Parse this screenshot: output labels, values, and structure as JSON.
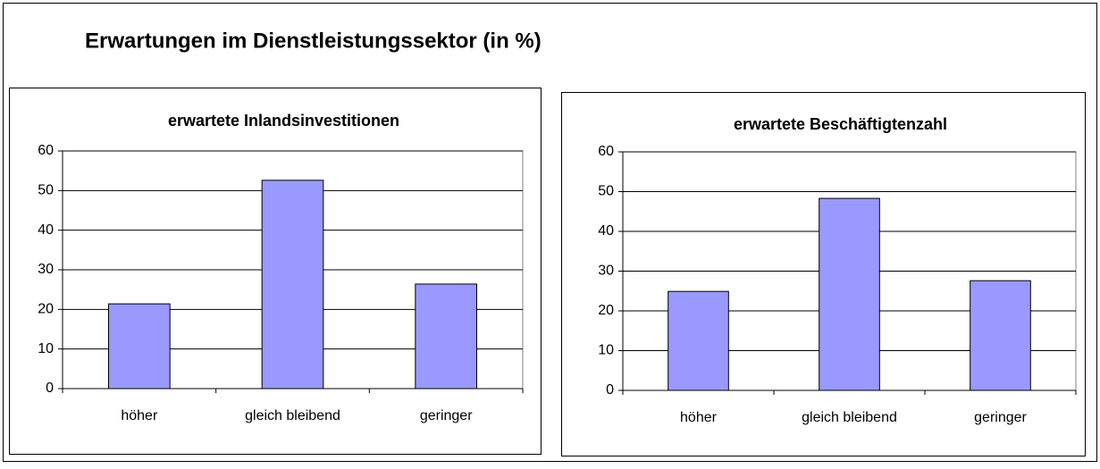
{
  "title": "Erwartungen im Dienstleistungssektor (in %)",
  "chart_data": [
    {
      "type": "bar",
      "title": "erwartete Inlandsinvestitionen",
      "categories": [
        "höher",
        "gleich bleibend",
        "geringer"
      ],
      "values": [
        21.4,
        52.6,
        26.4
      ],
      "color": "#9999ff",
      "ylim": [
        0,
        60
      ],
      "yticks": [
        0,
        10,
        20,
        30,
        40,
        50,
        60
      ],
      "grid": true
    },
    {
      "type": "bar",
      "title": "erwartete Beschäftigtenzahl",
      "categories": [
        "höher",
        "gleich bleibend",
        "geringer"
      ],
      "values": [
        24.9,
        48.3,
        27.6
      ],
      "color": "#9999ff",
      "ylim": [
        0,
        60
      ],
      "yticks": [
        0,
        10,
        20,
        30,
        40,
        50,
        60
      ],
      "grid": true
    }
  ]
}
